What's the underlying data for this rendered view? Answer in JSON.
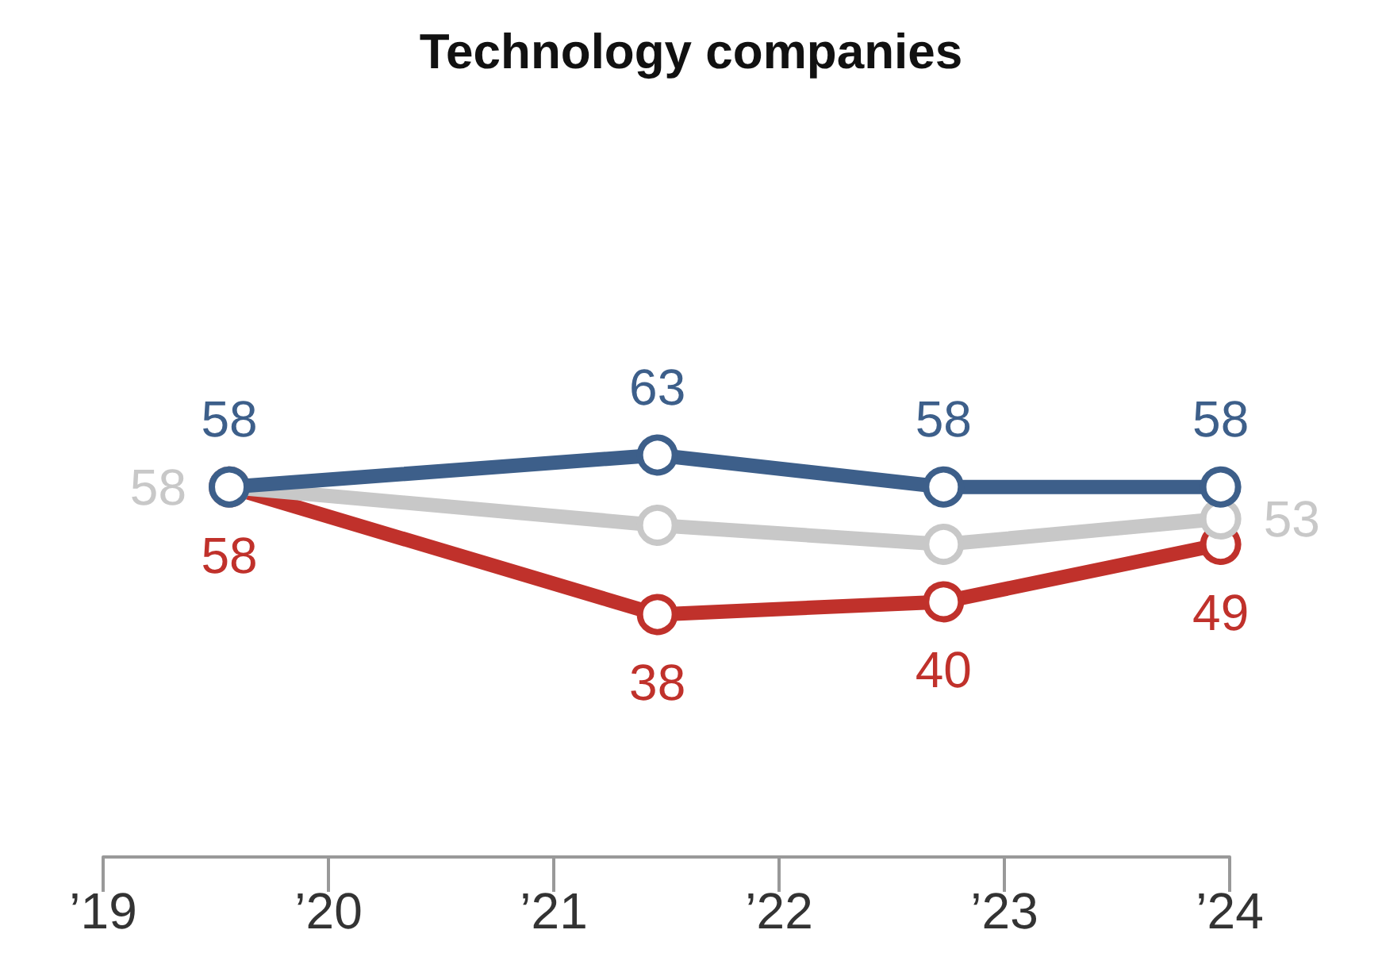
{
  "chart_data": {
    "type": "line",
    "title": "Technology companies",
    "xlim": [
      2019,
      2024
    ],
    "xticks": [
      {
        "value": 2019,
        "label": "’19"
      },
      {
        "value": 2020,
        "label": "’20"
      },
      {
        "value": 2021,
        "label": "’21"
      },
      {
        "value": 2022,
        "label": "’22"
      },
      {
        "value": 2023,
        "label": "’23"
      },
      {
        "value": 2024,
        "label": "’24"
      }
    ],
    "tick_labels": "x",
    "grid": false,
    "marker": "circle",
    "series": [
      {
        "color": "#3d5f8a",
        "x": [
          2019.56,
          2021.46,
          2022.73,
          2023.96
        ],
        "values": [
          58,
          63,
          58,
          58
        ],
        "value_labels": [
          "58",
          "63",
          "58",
          "58"
        ]
      },
      {
        "color": "#c8c8c8",
        "x": [
          2019.56,
          2021.46,
          2022.73,
          2023.96
        ],
        "values": [
          58,
          52,
          49,
          53
        ],
        "value_labels": [
          "58",
          null,
          null,
          "53"
        ]
      },
      {
        "color": "#c0312b",
        "x": [
          2019.56,
          2021.46,
          2022.73,
          2023.96
        ],
        "values": [
          58,
          38,
          40,
          49
        ],
        "value_labels": [
          "58",
          "38",
          "40",
          "49"
        ]
      }
    ]
  }
}
